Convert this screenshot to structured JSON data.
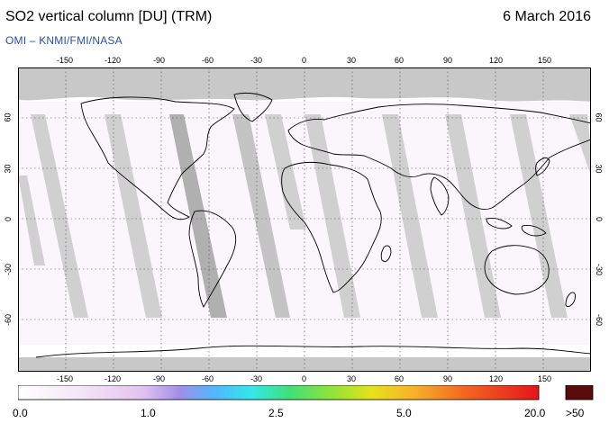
{
  "header": {
    "title": "SO2 vertical column [DU] (TRM)",
    "date": "6 March 2016",
    "credit": "OMI  –  KNMI/FMI/NASA"
  },
  "map": {
    "lon_ticks": [
      "-150",
      "-120",
      "-90",
      "-60",
      "-30",
      "0",
      "30",
      "60",
      "90",
      "120",
      "150"
    ],
    "lat_ticks": [
      "60",
      "30",
      "0",
      "-30",
      "-60"
    ],
    "colors": {
      "background": "#ffffff",
      "nodata": "#c8c8c8",
      "swath_gap": "#a8a8a8",
      "coastline": "#000000",
      "grid": "#444444"
    }
  },
  "colorbar": {
    "labels": [
      "0.0",
      "1.0",
      "2.5",
      "5.0",
      "20.0"
    ],
    "saturation_label": ">50",
    "saturation_color": "#5a0b0b"
  }
}
